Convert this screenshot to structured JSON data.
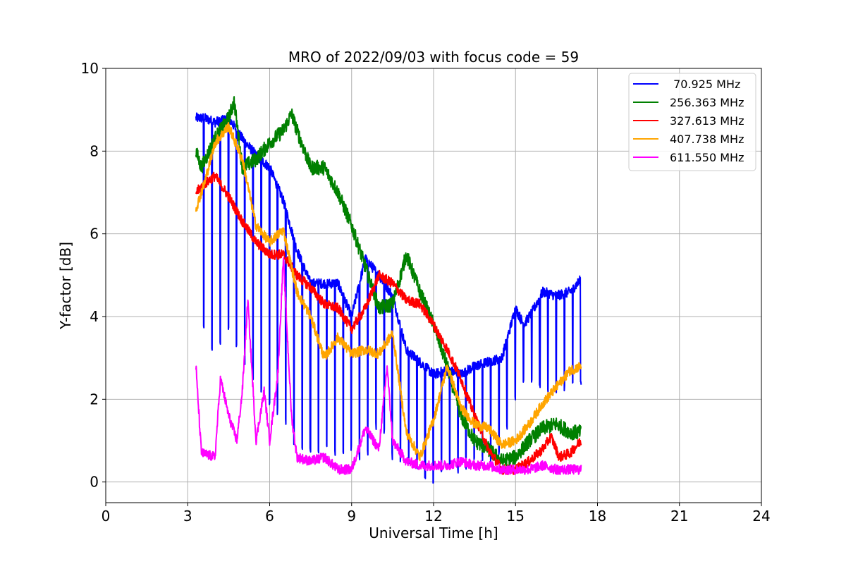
{
  "chart_data": {
    "type": "line",
    "title": "MRO of 2022/09/03 with focus code = 59",
    "xlabel": "Universal Time [h]",
    "ylabel": "Y-factor [dB]",
    "xlim": [
      0,
      24
    ],
    "ylim": [
      -0.5,
      10
    ],
    "xticks": [
      0,
      3,
      6,
      9,
      12,
      15,
      18,
      21,
      24
    ],
    "yticks": [
      0,
      2,
      4,
      6,
      8,
      10
    ],
    "grid": true,
    "legend_position": "top-right",
    "series": [
      {
        "name": " 70.925 MHz",
        "color": "#0000ff",
        "x": [
          3.3,
          3.6,
          4.0,
          4.5,
          5.0,
          5.5,
          6.0,
          6.5,
          7.0,
          7.5,
          8.0,
          8.5,
          9.0,
          9.5,
          10.0,
          10.5,
          11.0,
          11.5,
          12.0,
          12.5,
          13.0,
          13.5,
          14.0,
          14.5,
          15.0,
          15.3,
          15.6,
          16.0,
          16.5,
          17.0,
          17.4
        ],
        "y": [
          8.8,
          8.8,
          8.7,
          8.8,
          8.3,
          7.9,
          7.6,
          6.8,
          5.6,
          4.8,
          4.8,
          4.8,
          4.0,
          5.4,
          5.0,
          4.5,
          3.2,
          2.9,
          2.6,
          2.7,
          2.6,
          2.8,
          2.9,
          3.0,
          4.2,
          3.8,
          4.1,
          4.6,
          4.5,
          4.6,
          4.9
        ],
        "dip_values": [
          3.6,
          3.8,
          3.1,
          3.7,
          3.0,
          2.4,
          1.9,
          1.6,
          0.8,
          0.8,
          0.8,
          0.7,
          0.8,
          0.5,
          1.6,
          0.6,
          0.5,
          0.3,
          0.0,
          0.4,
          0.3,
          0.6,
          0.5,
          0.8,
          2.1,
          2.5,
          2.5,
          2.3,
          2.2,
          2.3,
          2.4
        ]
      },
      {
        "name": "256.363 MHz",
        "color": "#008000",
        "x": [
          3.3,
          3.5,
          4.0,
          4.5,
          4.7,
          5.0,
          5.5,
          6.0,
          6.5,
          6.8,
          7.0,
          7.5,
          8.0,
          8.5,
          9.0,
          9.5,
          10.0,
          10.5,
          10.8,
          11.0,
          11.5,
          12.0,
          12.5,
          13.0,
          13.5,
          14.0,
          14.5,
          15.0,
          15.5,
          16.0,
          16.5,
          17.0,
          17.4
        ],
        "y": [
          8.0,
          7.6,
          8.3,
          8.8,
          9.2,
          7.6,
          7.8,
          8.2,
          8.5,
          8.9,
          8.5,
          7.6,
          7.6,
          7.0,
          6.2,
          5.2,
          4.2,
          4.3,
          5.0,
          5.5,
          4.6,
          3.8,
          2.8,
          1.6,
          1.0,
          0.8,
          0.5,
          0.6,
          1.0,
          1.3,
          1.4,
          1.2,
          1.2
        ]
      },
      {
        "name": "327.613 MHz",
        "color": "#ff0000",
        "x": [
          3.3,
          3.6,
          4.0,
          4.5,
          5.0,
          5.5,
          6.0,
          6.5,
          7.0,
          7.5,
          8.0,
          8.5,
          9.0,
          9.5,
          10.0,
          10.5,
          11.0,
          11.5,
          12.0,
          12.5,
          13.0,
          13.5,
          14.0,
          14.5,
          15.0,
          15.5,
          16.0,
          16.3,
          16.6,
          17.0,
          17.4
        ],
        "y": [
          7.0,
          7.2,
          7.4,
          6.9,
          6.3,
          5.8,
          5.5,
          5.5,
          5.0,
          4.7,
          4.3,
          4.2,
          3.7,
          4.2,
          5.0,
          4.8,
          4.4,
          4.3,
          3.8,
          3.2,
          2.5,
          1.6,
          0.8,
          0.3,
          0.3,
          0.5,
          0.8,
          1.1,
          0.6,
          0.7,
          1.0
        ]
      },
      {
        "name": "407.738 MHz",
        "color": "#ffa500",
        "x": [
          3.3,
          3.6,
          4.0,
          4.5,
          5.0,
          5.5,
          6.0,
          6.5,
          7.0,
          7.5,
          8.0,
          8.5,
          9.0,
          9.5,
          10.0,
          10.5,
          11.0,
          11.5,
          12.0,
          12.5,
          13.0,
          13.5,
          14.0,
          14.5,
          15.0,
          15.5,
          16.0,
          16.5,
          17.0,
          17.4
        ],
        "y": [
          6.6,
          7.2,
          8.2,
          8.6,
          7.8,
          6.2,
          5.8,
          6.1,
          4.6,
          4.0,
          3.0,
          3.5,
          3.1,
          3.2,
          3.1,
          3.6,
          1.2,
          0.6,
          1.5,
          2.8,
          1.8,
          1.4,
          1.3,
          0.9,
          1.0,
          1.4,
          1.9,
          2.3,
          2.7,
          2.8
        ]
      },
      {
        "name": "611.550 MHz",
        "color": "#ff00ff",
        "x": [
          3.3,
          3.5,
          4.0,
          4.2,
          4.5,
          4.8,
          5.0,
          5.2,
          5.5,
          5.8,
          6.0,
          6.3,
          6.5,
          6.8,
          7.0,
          7.5,
          8.0,
          8.5,
          9.0,
          9.5,
          10.0,
          10.3,
          10.5,
          11.0,
          11.5,
          12.0,
          12.5,
          13.0,
          13.5,
          14.0,
          14.5,
          15.0,
          15.5,
          16.0,
          16.5,
          17.0,
          17.4
        ],
        "y": [
          2.8,
          0.7,
          0.6,
          2.5,
          1.6,
          1.0,
          2.2,
          4.4,
          1.0,
          2.2,
          1.0,
          2.6,
          5.4,
          1.6,
          0.6,
          0.5,
          0.6,
          0.3,
          0.3,
          1.3,
          0.8,
          2.8,
          1.0,
          0.5,
          0.4,
          0.4,
          0.4,
          0.5,
          0.4,
          0.4,
          0.3,
          0.3,
          0.3,
          0.4,
          0.3,
          0.3,
          0.3
        ]
      }
    ]
  }
}
